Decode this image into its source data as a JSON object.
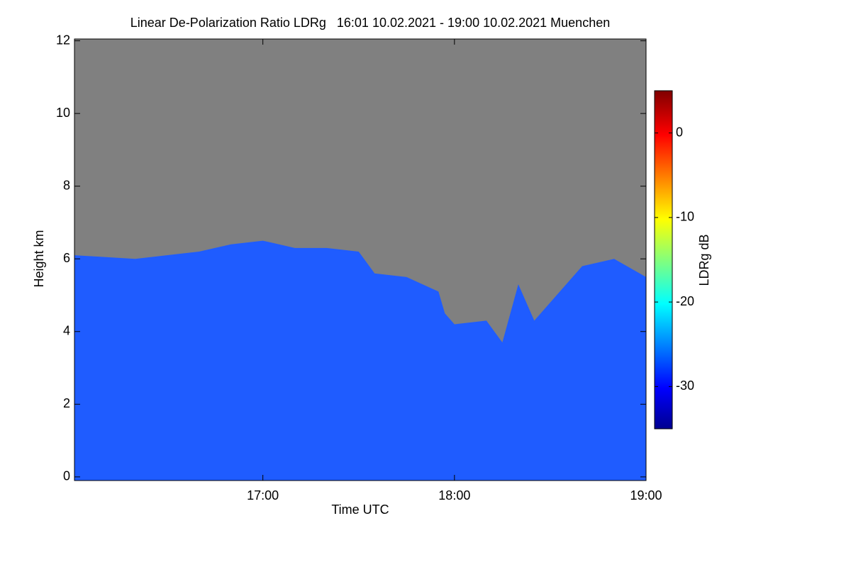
{
  "chart_data": {
    "type": "area",
    "title": "Linear De-Polarization Ratio LDRg   16:01 10.02.2021 - 19:00 10.02.2021 Muenchen",
    "x_label": "Time UTC",
    "y_label": "Height km",
    "xlim": [
      "16:01",
      "19:00"
    ],
    "xticks": [
      "17:00",
      "18:00",
      "19:00"
    ],
    "ylim": [
      -0.1,
      12.05
    ],
    "yticks": [
      0,
      2,
      4,
      6,
      8,
      10,
      12
    ],
    "background_color": "#808080",
    "echo_top": {
      "color": "#1f5cff",
      "x": [
        "16:01",
        "16:20",
        "16:40",
        "16:50",
        "17:00",
        "17:10",
        "17:20",
        "17:30",
        "17:35",
        "17:45",
        "17:50",
        "17:55",
        "17:57",
        "18:00",
        "18:10",
        "18:15",
        "18:20",
        "18:25",
        "18:30",
        "18:40",
        "18:50",
        "19:00"
      ],
      "values": [
        6.1,
        6.0,
        6.2,
        6.4,
        6.5,
        6.3,
        6.3,
        6.2,
        5.6,
        5.5,
        5.3,
        5.1,
        4.5,
        4.2,
        4.3,
        3.7,
        5.3,
        4.3,
        4.8,
        5.8,
        6.0,
        5.5
      ]
    },
    "colorbar": {
      "label": "LDRg dB",
      "zlim": [
        -35,
        5
      ],
      "ticks": [
        0,
        -10,
        -20,
        -30
      ]
    }
  }
}
